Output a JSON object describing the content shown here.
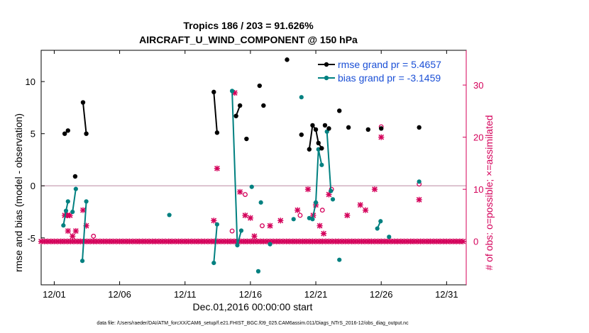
{
  "chart_data": {
    "type": "scatter",
    "title_line1": "Tropics 186 / 203 = 91.626%",
    "title_line2": "AIRCRAFT_U_WIND_COMPONENT @ 150 hPa",
    "xlabel": "Dec.01,2016 00:00:00 start",
    "ylabel_left": "rmse and bias (model - observation)",
    "ylabel_right": "# of obs: o=possible; ×=assimilated",
    "x_tick_labels": [
      "12/01",
      "12/06",
      "12/11",
      "12/16",
      "12/21",
      "12/26",
      "12/31"
    ],
    "x_tick_values": [
      0,
      5,
      10,
      15,
      20,
      25,
      30
    ],
    "xlim": [
      -1,
      31.5
    ],
    "ylim_left": [
      -9.5,
      13
    ],
    "ylim_right": [
      -8.33,
      36.67
    ],
    "y_ticks_left": [
      -5,
      0,
      5,
      10
    ],
    "y_ticks_right": [
      0,
      10,
      20,
      30
    ],
    "zero_line": 0,
    "footer": "data file: /Users/raeder/DAI/ATM_forcXX/CAM6_setup/f.e21.FHIST_BGC.f09_025.CAM6assim.011/Diags_NTrS_2016-12/obs_diag_output.nc",
    "colors": {
      "rmse": "#000000",
      "bias": "#008080",
      "count": "#d4005a",
      "legend_text": "#1a4fd6",
      "zero_line": "#c8a0b4"
    },
    "legend": [
      {
        "label": "rmse grand pr = 5.4657",
        "series": "rmse"
      },
      {
        "label": "bias grand pr = -3.1459",
        "series": "bias"
      }
    ],
    "series": [
      {
        "name": "rmse",
        "segments": [
          [
            [
              0.8,
              5.0
            ],
            [
              1.05,
              5.3
            ]
          ],
          [
            [
              2.2,
              8.0
            ],
            [
              2.45,
              5.0
            ]
          ],
          [
            [
              12.2,
              9.0
            ],
            [
              12.45,
              5.1
            ]
          ],
          [
            [
              13.9,
              6.7
            ],
            [
              14.2,
              7.7
            ]
          ],
          [
            [
              19.5,
              3.5
            ],
            [
              19.75,
              5.8
            ],
            [
              20.0,
              5.4
            ],
            [
              20.2,
              4.1
            ],
            [
              20.45,
              3.6
            ]
          ]
        ],
        "points": [
          [
            1.6,
            0.9
          ],
          [
            14.7,
            4.5
          ],
          [
            15.7,
            9.6
          ],
          [
            16.0,
            7.7
          ],
          [
            17.8,
            12.1
          ],
          [
            18.9,
            4.9
          ],
          [
            20.7,
            5.8
          ],
          [
            21.0,
            5.5
          ],
          [
            21.8,
            7.2
          ],
          [
            22.5,
            5.6
          ],
          [
            24.0,
            5.4
          ],
          [
            25.0,
            5.5
          ],
          [
            27.9,
            5.6
          ]
        ]
      },
      {
        "name": "bias",
        "segments": [
          [
            [
              0.7,
              -3.8
            ],
            [
              0.9,
              -2.4
            ],
            [
              1.05,
              -1.5
            ]
          ],
          [
            [
              1.4,
              -2.5
            ],
            [
              1.65,
              -0.3
            ]
          ],
          [
            [
              2.15,
              -7.2
            ],
            [
              2.45,
              -1.5
            ]
          ],
          [
            [
              12.2,
              -7.4
            ],
            [
              12.45,
              -3.7
            ]
          ],
          [
            [
              13.6,
              9.1
            ],
            [
              14.0,
              -5.7
            ],
            [
              14.3,
              -4.3
            ]
          ],
          [
            [
              19.5,
              -3.1
            ],
            [
              19.75,
              -3.2
            ],
            [
              20.0,
              -1.6
            ],
            [
              20.2,
              3.5
            ],
            [
              20.45,
              2.0
            ]
          ],
          [
            [
              20.85,
              5.2
            ],
            [
              21.15,
              -0.5
            ]
          ],
          [
            [
              24.7,
              -4.1
            ],
            [
              24.95,
              -3.4
            ]
          ]
        ],
        "points": [
          [
            8.8,
            -2.8
          ],
          [
            15.1,
            -0.1
          ],
          [
            15.8,
            -1.6
          ],
          [
            15.6,
            -8.2
          ],
          [
            16.5,
            -5.6
          ],
          [
            18.3,
            -3.2
          ],
          [
            18.9,
            8.5
          ],
          [
            21.3,
            -1.3
          ],
          [
            21.8,
            -7.1
          ],
          [
            25.6,
            -4.9
          ],
          [
            27.9,
            0.4
          ]
        ]
      },
      {
        "name": "assimilated_count",
        "values_note": "one marker every 0.25 days, value per 6h cycle",
        "points": [
          [
            0.8,
            5
          ],
          [
            1.0,
            5
          ],
          [
            1.2,
            5
          ],
          [
            1.05,
            2
          ],
          [
            1.4,
            1
          ],
          [
            1.65,
            2
          ],
          [
            2.2,
            6
          ],
          [
            2.45,
            3
          ],
          [
            12.2,
            4
          ],
          [
            12.45,
            14
          ],
          [
            13.8,
            28.5
          ],
          [
            14.2,
            9.5
          ],
          [
            14.6,
            5
          ],
          [
            15.0,
            4.5
          ],
          [
            15.3,
            1
          ],
          [
            16.5,
            3
          ],
          [
            17.3,
            4
          ],
          [
            18.6,
            6
          ],
          [
            19.4,
            10
          ],
          [
            19.8,
            5
          ],
          [
            20.0,
            7
          ],
          [
            20.3,
            3
          ],
          [
            20.6,
            1.5
          ],
          [
            21.0,
            9
          ],
          [
            22.4,
            5
          ],
          [
            23.4,
            7
          ],
          [
            23.8,
            6
          ],
          [
            24.5,
            10
          ],
          [
            25.0,
            20
          ],
          [
            27.9,
            8
          ]
        ]
      },
      {
        "name": "possible_count",
        "points": [
          [
            3.0,
            1
          ],
          [
            13.6,
            2
          ],
          [
            14.6,
            9
          ],
          [
            15.9,
            3
          ],
          [
            18.8,
            5
          ],
          [
            20.5,
            6
          ],
          [
            21.2,
            10
          ],
          [
            25.0,
            22
          ],
          [
            27.9,
            11
          ]
        ]
      }
    ]
  }
}
